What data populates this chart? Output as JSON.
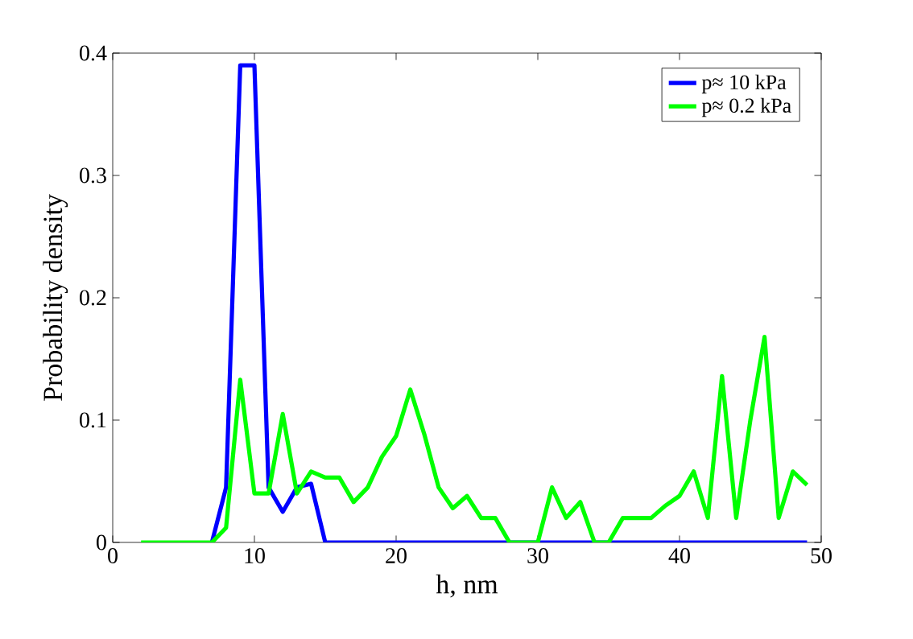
{
  "chart_data": {
    "type": "line",
    "xlabel": "h, nm",
    "ylabel": "Probability density",
    "x": [
      2,
      3,
      4,
      5,
      6,
      7,
      8,
      9,
      10,
      11,
      12,
      13,
      14,
      15,
      16,
      17,
      18,
      19,
      20,
      21,
      22,
      23,
      24,
      25,
      26,
      27,
      28,
      29,
      30,
      31,
      32,
      33,
      34,
      35,
      36,
      37,
      38,
      39,
      40,
      41,
      42,
      43,
      44,
      45,
      46,
      47,
      48,
      49
    ],
    "series": [
      {
        "name": "p≈ 10 kPa",
        "color": "#0000ff",
        "values": [
          null,
          null,
          null,
          null,
          null,
          0,
          0.045,
          0.39,
          0.39,
          0.045,
          0.025,
          0.045,
          0.048,
          0,
          0,
          0,
          0,
          0,
          0,
          0,
          0,
          0,
          0,
          0,
          0,
          0,
          0,
          0,
          0,
          0,
          0,
          0,
          0,
          0,
          0,
          0,
          0,
          0,
          0,
          0,
          0,
          0,
          0,
          0,
          0,
          0,
          0,
          0
        ]
      },
      {
        "name": "p≈ 0.2 kPa",
        "color": "#00ff00",
        "values": [
          0,
          0,
          0,
          0,
          0,
          0,
          0.012,
          0.133,
          0.04,
          0.04,
          0.105,
          0.04,
          0.058,
          0.053,
          0.053,
          0.033,
          0.045,
          0.07,
          0.087,
          0.125,
          0.088,
          0.045,
          0.028,
          0.038,
          0.02,
          0.02,
          0,
          0,
          0,
          0.045,
          0.02,
          0.033,
          0,
          0,
          0.02,
          0.02,
          0.02,
          0.03,
          0.038,
          0.058,
          0.02,
          0.136,
          0.02,
          0.1,
          0.168,
          0.02,
          0.058,
          0.047
        ]
      }
    ],
    "xlim": [
      0,
      50
    ],
    "xticks": [
      0,
      10,
      20,
      30,
      40,
      50
    ],
    "ylim": [
      0,
      0.4
    ],
    "yticks": [
      0,
      0.1,
      0.2,
      0.3,
      0.4
    ],
    "legend": "top right",
    "grid": false,
    "line_style": "solid",
    "marker": "none"
  }
}
